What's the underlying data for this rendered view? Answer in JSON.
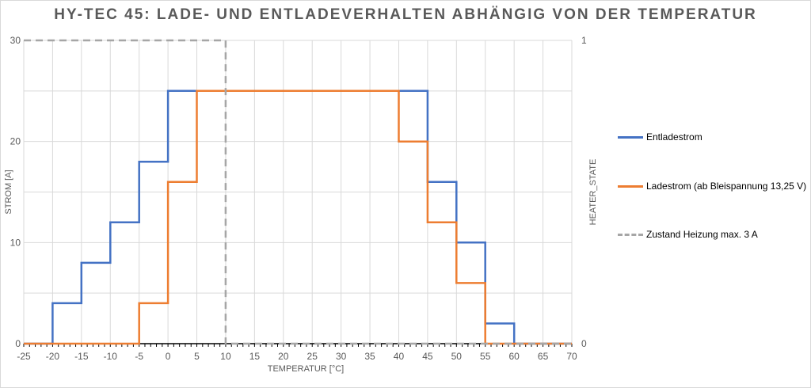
{
  "chart_data": {
    "type": "line",
    "title": "HY-TEC 45: LADE- UND ENTLADEVERHALTEN ABHÄNGIG VON DER TEMPERATUR",
    "xlabel": "TEMPERATUR [°C]",
    "ylabel": "STROM [A]",
    "y2label": "HEATER_STATE",
    "xlim": [
      -25,
      70
    ],
    "ylim": [
      0,
      30
    ],
    "y2lim": [
      0,
      1
    ],
    "x_ticks": [
      "-25",
      "-20",
      "-15",
      "-10",
      "-5",
      "0",
      "5",
      "10",
      "15",
      "20",
      "25",
      "30",
      "35",
      "40",
      "45",
      "50",
      "55",
      "60",
      "65",
      "70"
    ],
    "y_ticks": [
      "0",
      "10",
      "20",
      "30"
    ],
    "y2_ticks": [
      "0",
      "1"
    ],
    "grid": true,
    "legend_position": "right",
    "series": [
      {
        "name": "Entladestrom",
        "color": "#4472c4",
        "axis": "left",
        "style": "solid",
        "points": [
          [
            -25,
            0
          ],
          [
            -20,
            0
          ],
          [
            -20,
            4
          ],
          [
            -15,
            4
          ],
          [
            -15,
            8
          ],
          [
            -10,
            8
          ],
          [
            -10,
            12
          ],
          [
            -5,
            12
          ],
          [
            -5,
            18
          ],
          [
            0,
            18
          ],
          [
            0,
            25
          ],
          [
            45,
            25
          ],
          [
            45,
            16
          ],
          [
            50,
            16
          ],
          [
            50,
            10
          ],
          [
            55,
            10
          ],
          [
            55,
            2
          ],
          [
            60,
            2
          ],
          [
            60,
            0
          ],
          [
            70,
            0
          ]
        ]
      },
      {
        "name": "Ladestrom (ab Bleispannung 13,25 V)",
        "color": "#ed7d31",
        "axis": "left",
        "style": "solid",
        "points": [
          [
            -25,
            0
          ],
          [
            -5,
            0
          ],
          [
            -5,
            4
          ],
          [
            0,
            4
          ],
          [
            0,
            16
          ],
          [
            5,
            16
          ],
          [
            5,
            25
          ],
          [
            40,
            25
          ],
          [
            40,
            20
          ],
          [
            45,
            20
          ],
          [
            45,
            12
          ],
          [
            50,
            12
          ],
          [
            50,
            6
          ],
          [
            55,
            6
          ],
          [
            55,
            0
          ],
          [
            70,
            0
          ]
        ]
      },
      {
        "name": "Zustand Heizung max. 3 A",
        "color": "#a6a6a6",
        "axis": "right",
        "style": "dashed",
        "points": [
          [
            -25,
            1
          ],
          [
            10,
            1
          ],
          [
            10,
            0
          ],
          [
            70,
            0
          ]
        ]
      }
    ]
  }
}
